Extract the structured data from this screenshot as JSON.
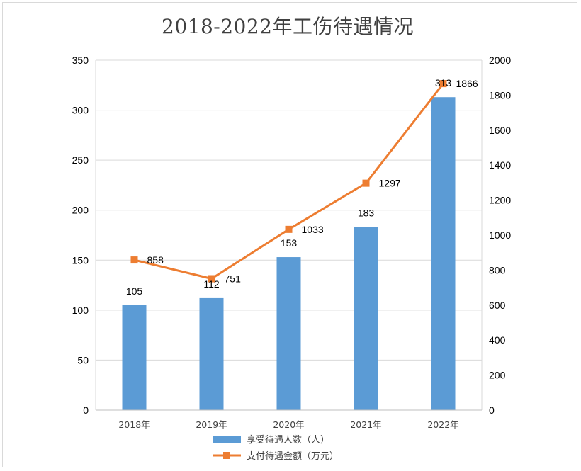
{
  "chart_data": {
    "type": "bar+line",
    "title": "2018-2022年工伤待遇情况",
    "categories": [
      "2018年",
      "2019年",
      "2020年",
      "2021年",
      "2022年"
    ],
    "series": [
      {
        "name": "享受待遇人数（人）",
        "type": "bar",
        "axis": "left",
        "color": "#5b9bd5",
        "values": [
          105,
          112,
          153,
          183,
          313
        ]
      },
      {
        "name": "支付待遇金额（万元）",
        "type": "line",
        "axis": "right",
        "color": "#ed7d31",
        "marker": "square",
        "values": [
          858,
          751,
          1033,
          1297,
          1866
        ]
      }
    ],
    "y_left": {
      "min": 0,
      "max": 350,
      "step": 50,
      "ticks": [
        0,
        50,
        100,
        150,
        200,
        250,
        300,
        350
      ]
    },
    "y_right": {
      "min": 0,
      "max": 2000,
      "step": 200,
      "ticks": [
        0,
        200,
        400,
        600,
        800,
        1000,
        1200,
        1400,
        1600,
        1800,
        2000
      ]
    },
    "grid": true,
    "legend_position": "bottom"
  }
}
